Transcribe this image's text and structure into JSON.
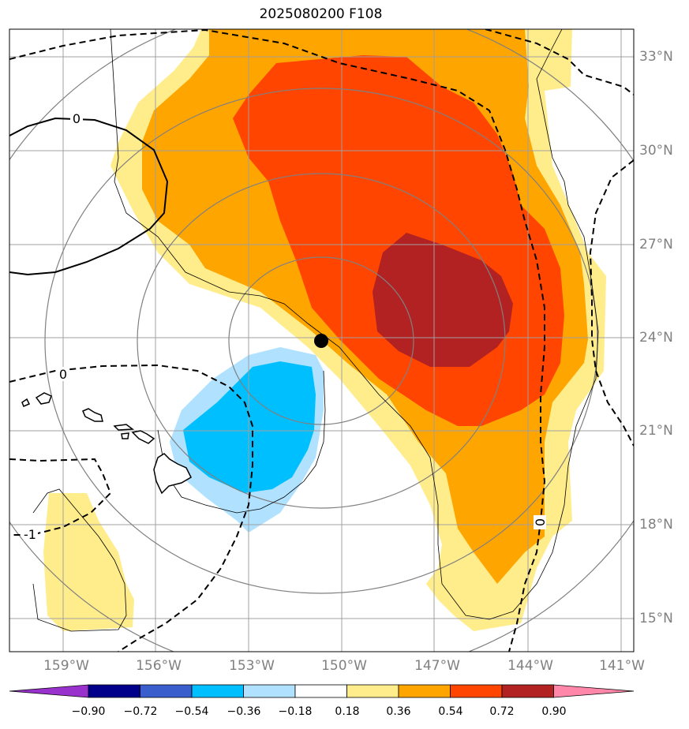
{
  "title": "2025080200 F108",
  "lon_labels": [
    "159°W",
    "156°W",
    "153°W",
    "150°W",
    "147°W",
    "144°W",
    "141°W"
  ],
  "lat_labels": [
    "33°N",
    "30°N",
    "27°N",
    "24°N",
    "21°N",
    "18°N",
    "15°N"
  ],
  "contour_labels": [
    "0",
    "0",
    "0",
    "-1"
  ],
  "colorbar": {
    "ticks": [
      "−0.90",
      "−0.72",
      "−0.54",
      "−0.36",
      "−0.18",
      "0.18",
      "0.36",
      "0.54",
      "0.72",
      "0.90"
    ],
    "colors": [
      "#9932cc",
      "#00008b",
      "#3a5fcd",
      "#00bfff",
      "#b0e2ff",
      "#ffffff",
      "#ffec8b",
      "#ffa500",
      "#ff4500",
      "#b22222",
      "#ff88aa"
    ]
  },
  "colors": {
    "grid": "#808080",
    "coast": "#000000"
  }
}
